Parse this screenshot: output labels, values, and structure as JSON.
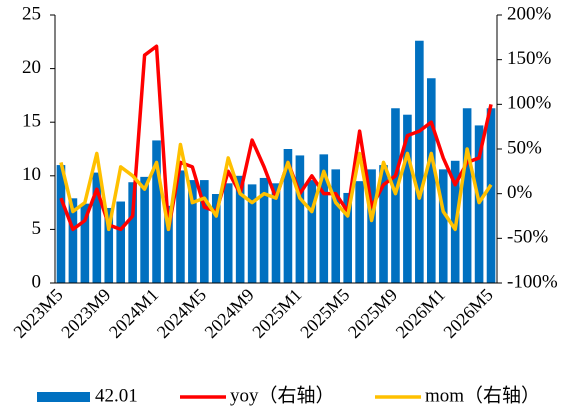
{
  "chart_data": {
    "type": "bar_line",
    "categories": [
      "2023M5",
      null,
      null,
      null,
      "2023M9",
      null,
      null,
      null,
      "2024M1",
      null,
      null,
      null,
      "2024M5",
      null,
      null,
      null,
      "2024M9",
      null,
      null,
      null,
      "2025M1",
      null,
      null,
      null,
      "2025M5",
      null,
      null,
      null,
      "2025M9",
      null,
      null,
      null,
      "2026M1",
      null,
      null,
      null,
      "2026M5"
    ],
    "series": [
      {
        "name": "42.01",
        "color": "#0070c0",
        "kind": "bar",
        "values": [
          11,
          7.9,
          7.4,
          10.3,
          7,
          7.6,
          9.4,
          9.9,
          13.3,
          7.2,
          10.5,
          9.6,
          9.6,
          8.3,
          9.3,
          10,
          9.2,
          9.8,
          9.3,
          12.5,
          11.9,
          9.6,
          12,
          10.6,
          8.4,
          9.5,
          10.6,
          11,
          16.3,
          15.7,
          22.6,
          19.1,
          10.6,
          11.4,
          16.3,
          14.7,
          16.3
        ]
      },
      {
        "name": "yoy（右轴）",
        "color": "#ff0000",
        "kind": "line",
        "axis": "y2",
        "values": [
          -5,
          -40,
          -30,
          5,
          -35,
          -40,
          -25,
          155,
          165,
          -40,
          35,
          30,
          -15,
          -20,
          25,
          0,
          60,
          30,
          -5,
          35,
          0,
          20,
          0,
          0,
          -20,
          70,
          -15,
          10,
          20,
          65,
          70,
          80,
          40,
          10,
          35,
          40,
          100
        ]
      },
      {
        "name": "mom（右轴）",
        "color": "#ffc000",
        "kind": "line",
        "axis": "y2",
        "values": [
          35,
          -20,
          -10,
          45,
          -40,
          30,
          20,
          5,
          35,
          -40,
          55,
          -10,
          -5,
          -25,
          40,
          0,
          -10,
          0,
          -5,
          35,
          -5,
          -20,
          25,
          -10,
          -25,
          45,
          -30,
          35,
          0,
          45,
          -5,
          45,
          -20,
          -40,
          50,
          -10,
          10
        ]
      }
    ],
    "ylim": [
      0,
      25
    ],
    "yticks": [
      0,
      5,
      10,
      15,
      20,
      25
    ],
    "y2lim": [
      -100,
      200
    ],
    "y2ticks": [
      {
        "value": -100,
        "label": "-100%"
      },
      {
        "value": -50,
        "label": "-50%"
      },
      {
        "value": 0,
        "label": "0%"
      },
      {
        "value": 50,
        "label": "50%"
      },
      {
        "value": 100,
        "label": "100%"
      },
      {
        "value": 150,
        "label": "150%"
      },
      {
        "value": 200,
        "label": "200%"
      }
    ],
    "legend": "bottom"
  }
}
